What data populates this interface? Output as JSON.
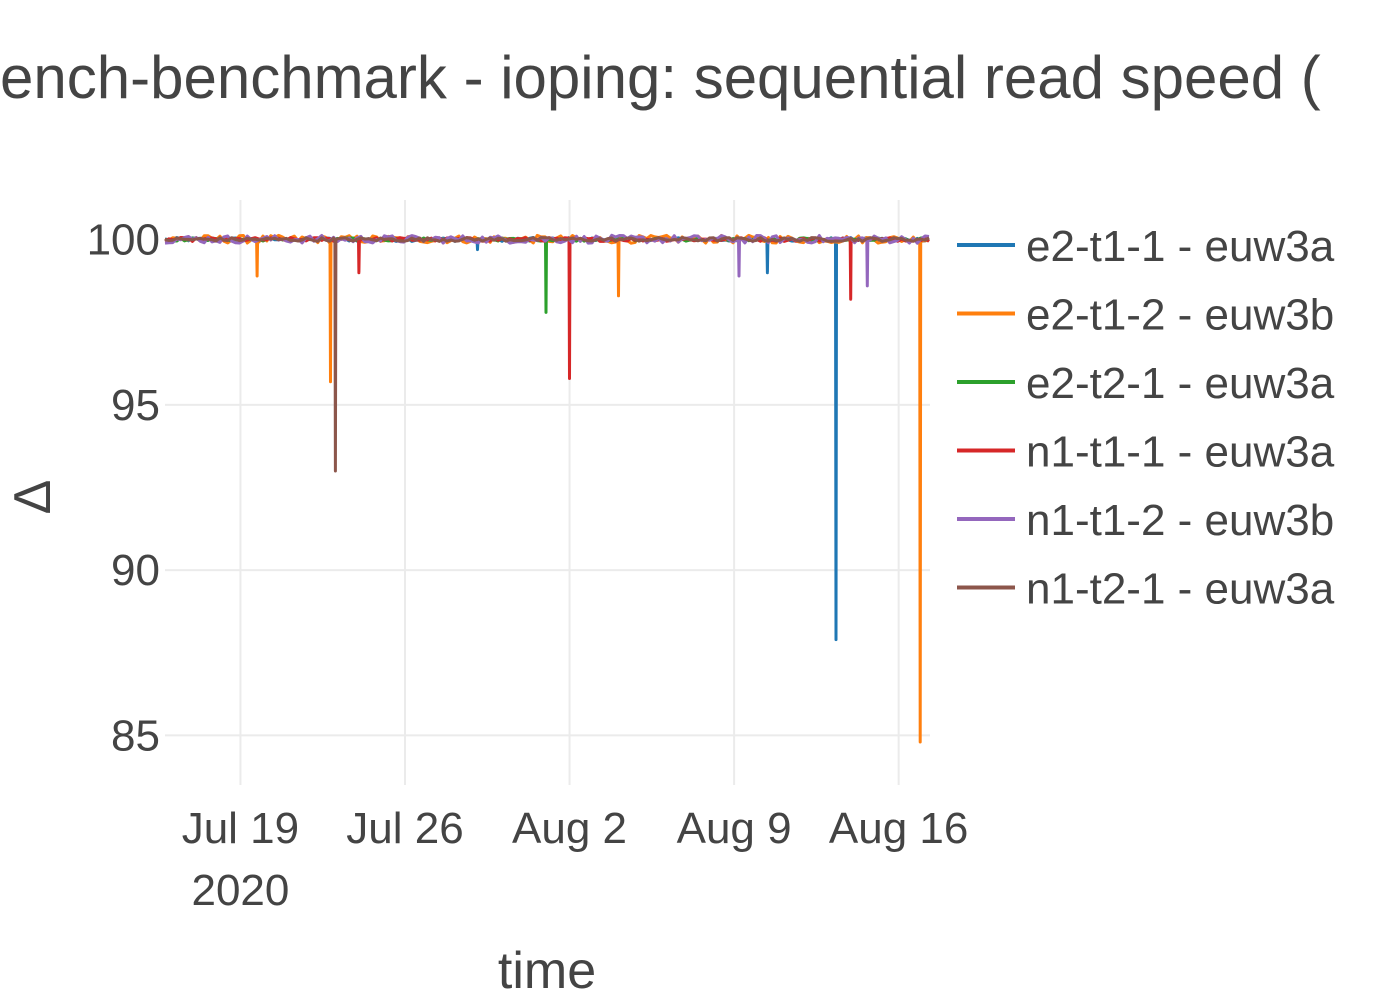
{
  "chart_data": {
    "type": "line",
    "title": "ench-benchmark - ioping: sequential read speed (",
    "xlabel": "time",
    "ylabel": "Δ",
    "x_ticks": [
      {
        "date": "2020-07-19",
        "label": "Jul 19",
        "sublabel": "2020"
      },
      {
        "date": "2020-07-26",
        "label": "Jul 26",
        "sublabel": ""
      },
      {
        "date": "2020-08-02",
        "label": "Aug 2",
        "sublabel": ""
      },
      {
        "date": "2020-08-09",
        "label": "Aug 9",
        "sublabel": ""
      },
      {
        "date": "2020-08-16",
        "label": "Aug 16",
        "sublabel": ""
      }
    ],
    "y_ticks": [
      85,
      90,
      95,
      100
    ],
    "xlim": [
      "2020-07-15T19:00",
      "2020-08-17T08:00"
    ],
    "ylim": [
      83.5,
      101.2
    ],
    "grid": true,
    "legend_position": "right",
    "baseline": 100,
    "series": [
      {
        "name": "e2-t1-1 - euw3a",
        "color": "#1f77b4",
        "noise": 0.06,
        "spikes": [
          [
            "2020-07-29T02:00",
            99.7
          ],
          [
            "2020-08-10T10:00",
            99.0
          ],
          [
            "2020-08-13T08:00",
            87.9
          ]
        ]
      },
      {
        "name": "e2-t1-2 - euw3b",
        "color": "#ff7f0e",
        "noise": 0.12,
        "spikes": [
          [
            "2020-07-19T17:00",
            98.9
          ],
          [
            "2020-07-22T20:00",
            95.7
          ],
          [
            "2020-08-04T02:00",
            98.3
          ],
          [
            "2020-08-16T22:00",
            84.8
          ]
        ]
      },
      {
        "name": "e2-t2-1 - euw3a",
        "color": "#2ca02c",
        "noise": 0.05,
        "spikes": [
          [
            "2020-08-01T00:00",
            97.8
          ]
        ]
      },
      {
        "name": "n1-t1-1 - euw3a",
        "color": "#d62728",
        "noise": 0.06,
        "spikes": [
          [
            "2020-07-24T01:00",
            99.0
          ],
          [
            "2020-08-02T00:00",
            95.8
          ],
          [
            "2020-08-13T23:00",
            98.2
          ]
        ]
      },
      {
        "name": "n1-t1-2 - euw3b",
        "color": "#9467bd",
        "noise": 0.12,
        "spikes": [
          [
            "2020-08-09T05:00",
            98.9
          ],
          [
            "2020-08-14T16:00",
            98.6
          ]
        ]
      },
      {
        "name": "n1-t2-1 - euw3a",
        "color": "#8c564b",
        "noise": 0.06,
        "spikes": [
          [
            "2020-07-23T01:00",
            93.0
          ]
        ]
      }
    ]
  }
}
